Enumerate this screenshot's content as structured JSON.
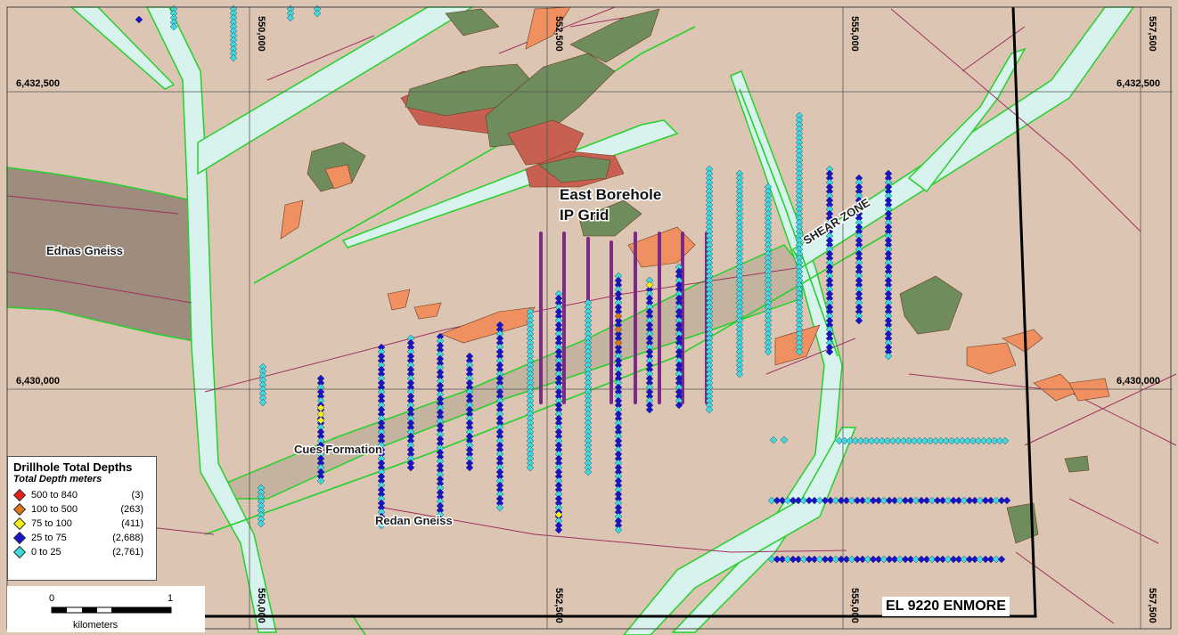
{
  "map": {
    "easting_labels": [
      "550,000",
      "552,500",
      "555,000",
      "557,500"
    ],
    "northing_labels": [
      "6,432,500",
      "6,430,000"
    ],
    "geology_labels": {
      "ednas_gneiss": "Ednas Gneiss",
      "cues_formation": "Cues Formation",
      "redan_gneiss": "Redan Gneiss",
      "shear_zone": "SHEAR ZONE"
    },
    "grid_title_line1": "East Borehole",
    "grid_title_line2": "IP Grid",
    "permit_label": "EL 9220 ENMORE",
    "colors": {
      "background": "#dcc6b3",
      "gneiss_fill": "#9e8d7e",
      "cues_fill": "#c4b39f",
      "dyke_fill": "#d8f2ee",
      "dyke_edge": "#24d12a",
      "fault_line": "#a03060",
      "ip_line": "#7b2a85",
      "outcrop_orange": "#f09060",
      "outcrop_green": "#6f8c5d",
      "outcrop_red": "#c76050",
      "drill_cyan": "#40d8d8",
      "drill_blue": "#1a14c8"
    }
  },
  "legend": {
    "title": "Drillhole Total Depths",
    "subtitle": "Total Depth meters",
    "items": [
      {
        "range": "500 to 840",
        "count": "(3)",
        "color": "#e8201a"
      },
      {
        "range": "100 to 500",
        "count": "(263)",
        "color": "#d8761c"
      },
      {
        "range": "75 to 100",
        "count": "(411)",
        "color": "#f2ef1c"
      },
      {
        "range": "25 to  75",
        "count": "(2,688)",
        "color": "#1a14c8"
      },
      {
        "range": "0 to  25",
        "count": "(2,761)",
        "color": "#40d8d8"
      }
    ]
  },
  "scale": {
    "left_value": "0",
    "right_value": "1",
    "unit": "kilometers"
  }
}
